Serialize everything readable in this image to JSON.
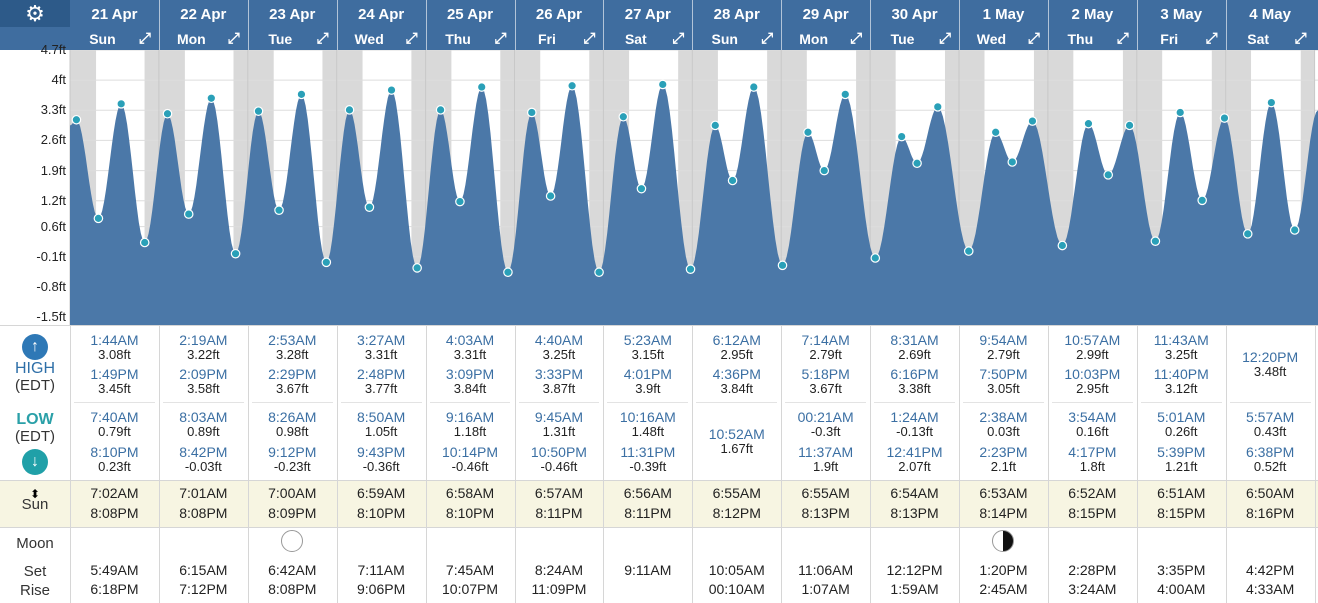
{
  "toolbar": {
    "settings_icon": "gear-icon",
    "expand_icon": "expand-icon"
  },
  "days": [
    {
      "date": "21 Apr",
      "dow": "Sun"
    },
    {
      "date": "22 Apr",
      "dow": "Mon"
    },
    {
      "date": "23 Apr",
      "dow": "Tue"
    },
    {
      "date": "24 Apr",
      "dow": "Wed"
    },
    {
      "date": "25 Apr",
      "dow": "Thu"
    },
    {
      "date": "26 Apr",
      "dow": "Fri"
    },
    {
      "date": "27 Apr",
      "dow": "Sat"
    },
    {
      "date": "28 Apr",
      "dow": "Sun"
    },
    {
      "date": "29 Apr",
      "dow": "Mon"
    },
    {
      "date": "30 Apr",
      "dow": "Tue"
    },
    {
      "date": "1 May",
      "dow": "Wed"
    },
    {
      "date": "2 May",
      "dow": "Thu"
    },
    {
      "date": "3 May",
      "dow": "Fri"
    },
    {
      "date": "4 May",
      "dow": "Sat"
    }
  ],
  "chart_data": {
    "type": "area",
    "title": "",
    "xlabel": "",
    "ylabel": "",
    "yticks": [
      "4.7ft",
      "4ft",
      "3.3ft",
      "2.6ft",
      "1.9ft",
      "1.2ft",
      "0.6ft",
      "-0.1ft",
      "-0.8ft",
      "-1.5ft"
    ],
    "ylim": [
      -1.5,
      4.7
    ],
    "series": [
      {
        "points": [
          {
            "day": 0,
            "hour": 1.73,
            "ft": 3.08
          },
          {
            "day": 0,
            "hour": 7.67,
            "ft": 0.79
          },
          {
            "day": 0,
            "hour": 13.82,
            "ft": 3.45
          },
          {
            "day": 0,
            "hour": 20.17,
            "ft": 0.23
          },
          {
            "day": 1,
            "hour": 2.32,
            "ft": 3.22
          },
          {
            "day": 1,
            "hour": 8.05,
            "ft": 0.89
          },
          {
            "day": 1,
            "hour": 14.15,
            "ft": 3.58
          },
          {
            "day": 1,
            "hour": 20.7,
            "ft": -0.03
          },
          {
            "day": 2,
            "hour": 2.88,
            "ft": 3.28
          },
          {
            "day": 2,
            "hour": 8.43,
            "ft": 0.98
          },
          {
            "day": 2,
            "hour": 14.48,
            "ft": 3.67
          },
          {
            "day": 2,
            "hour": 21.2,
            "ft": -0.23
          },
          {
            "day": 3,
            "hour": 3.45,
            "ft": 3.31
          },
          {
            "day": 3,
            "hour": 8.83,
            "ft": 1.05
          },
          {
            "day": 3,
            "hour": 14.8,
            "ft": 3.77
          },
          {
            "day": 3,
            "hour": 21.72,
            "ft": -0.36
          },
          {
            "day": 4,
            "hour": 4.05,
            "ft": 3.31
          },
          {
            "day": 4,
            "hour": 9.27,
            "ft": 1.18
          },
          {
            "day": 4,
            "hour": 15.15,
            "ft": 3.84
          },
          {
            "day": 4,
            "hour": 22.23,
            "ft": -0.46
          },
          {
            "day": 5,
            "hour": 4.67,
            "ft": 3.25
          },
          {
            "day": 5,
            "hour": 9.75,
            "ft": 1.31
          },
          {
            "day": 5,
            "hour": 15.55,
            "ft": 3.87
          },
          {
            "day": 5,
            "hour": 22.83,
            "ft": -0.46
          },
          {
            "day": 6,
            "hour": 5.38,
            "ft": 3.15
          },
          {
            "day": 6,
            "hour": 10.27,
            "ft": 1.48
          },
          {
            "day": 6,
            "hour": 16.02,
            "ft": 3.9
          },
          {
            "day": 6,
            "hour": 23.52,
            "ft": -0.39
          },
          {
            "day": 7,
            "hour": 6.2,
            "ft": 2.95
          },
          {
            "day": 7,
            "hour": 10.87,
            "ft": 1.67
          },
          {
            "day": 7,
            "hour": 16.6,
            "ft": 3.84
          },
          {
            "day": 8,
            "hour": 0.35,
            "ft": -0.3
          },
          {
            "day": 8,
            "hour": 7.23,
            "ft": 2.79
          },
          {
            "day": 8,
            "hour": 11.62,
            "ft": 1.9
          },
          {
            "day": 8,
            "hour": 17.3,
            "ft": 3.67
          },
          {
            "day": 9,
            "hour": 1.4,
            "ft": -0.13
          },
          {
            "day": 9,
            "hour": 8.52,
            "ft": 2.69
          },
          {
            "day": 9,
            "hour": 12.68,
            "ft": 2.07
          },
          {
            "day": 9,
            "hour": 18.27,
            "ft": 3.38
          },
          {
            "day": 10,
            "hour": 2.63,
            "ft": 0.03
          },
          {
            "day": 10,
            "hour": 9.9,
            "ft": 2.79
          },
          {
            "day": 10,
            "hour": 14.38,
            "ft": 2.1
          },
          {
            "day": 10,
            "hour": 19.83,
            "ft": 3.05
          },
          {
            "day": 11,
            "hour": 3.9,
            "ft": 0.16
          },
          {
            "day": 11,
            "hour": 10.95,
            "ft": 2.99
          },
          {
            "day": 11,
            "hour": 16.28,
            "ft": 1.8
          },
          {
            "day": 11,
            "hour": 22.05,
            "ft": 2.95
          },
          {
            "day": 12,
            "hour": 5.02,
            "ft": 0.26
          },
          {
            "day": 12,
            "hour": 11.72,
            "ft": 3.25
          },
          {
            "day": 12,
            "hour": 17.65,
            "ft": 1.21
          },
          {
            "day": 12,
            "hour": 23.67,
            "ft": 3.12
          },
          {
            "day": 13,
            "hour": 5.95,
            "ft": 0.43
          },
          {
            "day": 13,
            "hour": 12.33,
            "ft": 3.48
          },
          {
            "day": 13,
            "hour": 18.63,
            "ft": 0.52
          }
        ]
      }
    ],
    "colors": {
      "fill": "#4b78a8",
      "dot": "#2aa0b8",
      "night": "#d9d9d9",
      "grid": "#dddddd",
      "header": "#3f6d9f"
    }
  },
  "table": {
    "high_label": "HIGH",
    "low_label": "LOW",
    "tz": "(EDT)",
    "sun_label": "Sun",
    "moon_label": "Moon",
    "set_label": "Set",
    "rise_label": "Rise",
    "high": [
      [
        {
          "time": "1:44AM",
          "ft": "3.08ft"
        },
        {
          "time": "1:49PM",
          "ft": "3.45ft"
        }
      ],
      [
        {
          "time": "2:19AM",
          "ft": "3.22ft"
        },
        {
          "time": "2:09PM",
          "ft": "3.58ft"
        }
      ],
      [
        {
          "time": "2:53AM",
          "ft": "3.28ft"
        },
        {
          "time": "2:29PM",
          "ft": "3.67ft"
        }
      ],
      [
        {
          "time": "3:27AM",
          "ft": "3.31ft"
        },
        {
          "time": "2:48PM",
          "ft": "3.77ft"
        }
      ],
      [
        {
          "time": "4:03AM",
          "ft": "3.31ft"
        },
        {
          "time": "3:09PM",
          "ft": "3.84ft"
        }
      ],
      [
        {
          "time": "4:40AM",
          "ft": "3.25ft"
        },
        {
          "time": "3:33PM",
          "ft": "3.87ft"
        }
      ],
      [
        {
          "time": "5:23AM",
          "ft": "3.15ft"
        },
        {
          "time": "4:01PM",
          "ft": "3.9ft"
        }
      ],
      [
        {
          "time": "6:12AM",
          "ft": "2.95ft"
        },
        {
          "time": "4:36PM",
          "ft": "3.84ft"
        }
      ],
      [
        {
          "time": "7:14AM",
          "ft": "2.79ft"
        },
        {
          "time": "5:18PM",
          "ft": "3.67ft"
        }
      ],
      [
        {
          "time": "8:31AM",
          "ft": "2.69ft"
        },
        {
          "time": "6:16PM",
          "ft": "3.38ft"
        }
      ],
      [
        {
          "time": "9:54AM",
          "ft": "2.79ft"
        },
        {
          "time": "7:50PM",
          "ft": "3.05ft"
        }
      ],
      [
        {
          "time": "10:57AM",
          "ft": "2.99ft"
        },
        {
          "time": "10:03PM",
          "ft": "2.95ft"
        }
      ],
      [
        {
          "time": "11:43AM",
          "ft": "3.25ft"
        },
        {
          "time": "11:40PM",
          "ft": "3.12ft"
        }
      ],
      [
        {
          "time": "12:20PM",
          "ft": "3.48ft"
        }
      ]
    ],
    "low": [
      [
        {
          "time": "7:40AM",
          "ft": "0.79ft"
        },
        {
          "time": "8:10PM",
          "ft": "0.23ft"
        }
      ],
      [
        {
          "time": "8:03AM",
          "ft": "0.89ft"
        },
        {
          "time": "8:42PM",
          "ft": "-0.03ft"
        }
      ],
      [
        {
          "time": "8:26AM",
          "ft": "0.98ft"
        },
        {
          "time": "9:12PM",
          "ft": "-0.23ft"
        }
      ],
      [
        {
          "time": "8:50AM",
          "ft": "1.05ft"
        },
        {
          "time": "9:43PM",
          "ft": "-0.36ft"
        }
      ],
      [
        {
          "time": "9:16AM",
          "ft": "1.18ft"
        },
        {
          "time": "10:14PM",
          "ft": "-0.46ft"
        }
      ],
      [
        {
          "time": "9:45AM",
          "ft": "1.31ft"
        },
        {
          "time": "10:50PM",
          "ft": "-0.46ft"
        }
      ],
      [
        {
          "time": "10:16AM",
          "ft": "1.48ft"
        },
        {
          "time": "11:31PM",
          "ft": "-0.39ft"
        }
      ],
      [
        {
          "time": "10:52AM",
          "ft": "1.67ft"
        }
      ],
      [
        {
          "time": "00:21AM",
          "ft": "-0.3ft"
        },
        {
          "time": "11:37AM",
          "ft": "1.9ft"
        }
      ],
      [
        {
          "time": "1:24AM",
          "ft": "-0.13ft"
        },
        {
          "time": "12:41PM",
          "ft": "2.07ft"
        }
      ],
      [
        {
          "time": "2:38AM",
          "ft": "0.03ft"
        },
        {
          "time": "2:23PM",
          "ft": "2.1ft"
        }
      ],
      [
        {
          "time": "3:54AM",
          "ft": "0.16ft"
        },
        {
          "time": "4:17PM",
          "ft": "1.8ft"
        }
      ],
      [
        {
          "time": "5:01AM",
          "ft": "0.26ft"
        },
        {
          "time": "5:39PM",
          "ft": "1.21ft"
        }
      ],
      [
        {
          "time": "5:57AM",
          "ft": "0.43ft"
        },
        {
          "time": "6:38PM",
          "ft": "0.52ft"
        }
      ]
    ],
    "sun": [
      {
        "rise": "7:02AM",
        "set": "8:08PM"
      },
      {
        "rise": "7:01AM",
        "set": "8:08PM"
      },
      {
        "rise": "7:00AM",
        "set": "8:09PM"
      },
      {
        "rise": "6:59AM",
        "set": "8:10PM"
      },
      {
        "rise": "6:58AM",
        "set": "8:10PM"
      },
      {
        "rise": "6:57AM",
        "set": "8:11PM"
      },
      {
        "rise": "6:56AM",
        "set": "8:11PM"
      },
      {
        "rise": "6:55AM",
        "set": "8:12PM"
      },
      {
        "rise": "6:55AM",
        "set": "8:13PM"
      },
      {
        "rise": "6:54AM",
        "set": "8:13PM"
      },
      {
        "rise": "6:53AM",
        "set": "8:14PM"
      },
      {
        "rise": "6:52AM",
        "set": "8:15PM"
      },
      {
        "rise": "6:51AM",
        "set": "8:15PM"
      },
      {
        "rise": "6:50AM",
        "set": "8:16PM"
      }
    ],
    "moon": [
      {
        "set": "5:49AM",
        "rise": "6:18PM"
      },
      {
        "set": "6:15AM",
        "rise": "7:12PM"
      },
      {
        "set": "6:42AM",
        "rise": "8:08PM",
        "phase": "full-moon-icon"
      },
      {
        "set": "7:11AM",
        "rise": "9:06PM"
      },
      {
        "set": "7:45AM",
        "rise": "10:07PM"
      },
      {
        "set": "8:24AM",
        "rise": "11:09PM"
      },
      {
        "set": "9:11AM",
        "rise": ""
      },
      {
        "set": "10:05AM",
        "rise": "00:10AM"
      },
      {
        "set": "11:06AM",
        "rise": "1:07AM"
      },
      {
        "set": "12:12PM",
        "rise": "1:59AM"
      },
      {
        "set": "1:20PM",
        "rise": "2:45AM",
        "phase": "last-quarter-moon-icon"
      },
      {
        "set": "2:28PM",
        "rise": "3:24AM"
      },
      {
        "set": "3:35PM",
        "rise": "4:00AM"
      },
      {
        "set": "4:42PM",
        "rise": "4:33AM"
      }
    ]
  }
}
